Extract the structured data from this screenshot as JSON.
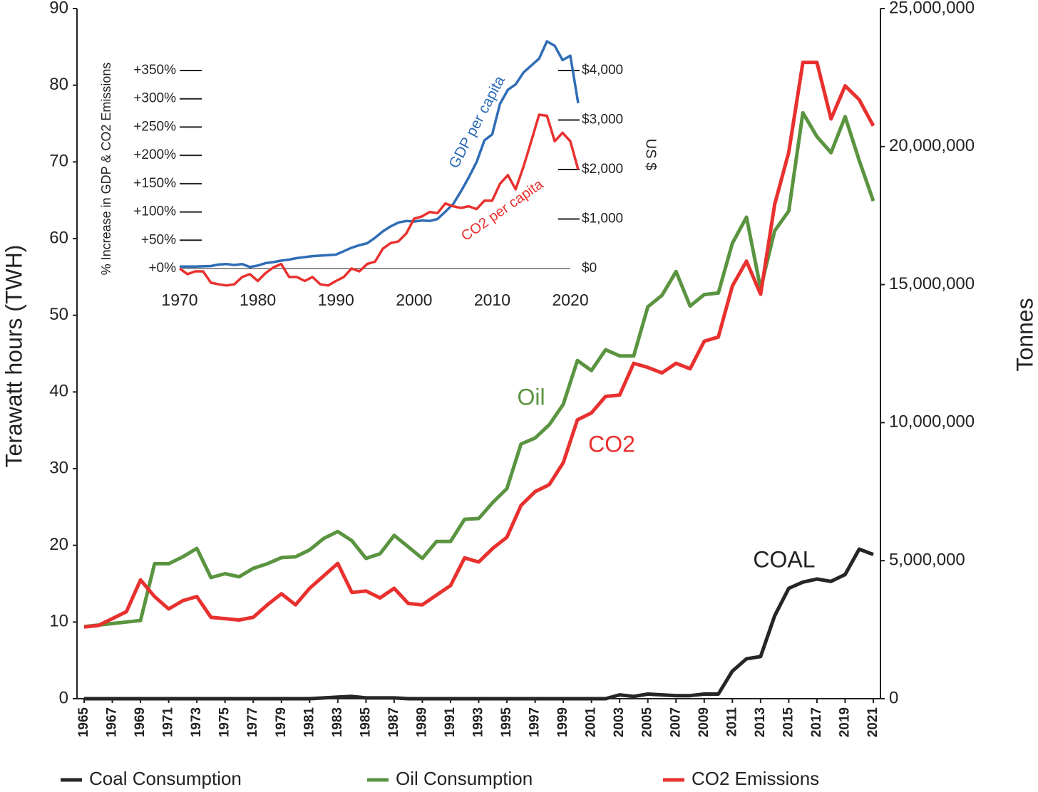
{
  "chart_data": [
    {
      "type": "line",
      "ylabel": "Terawatt hours (TWH)",
      "y2label": "Tonnes",
      "x": [
        1965,
        1966,
        1967,
        1968,
        1969,
        1970,
        1971,
        1972,
        1973,
        1974,
        1975,
        1976,
        1977,
        1978,
        1979,
        1980,
        1981,
        1982,
        1983,
        1984,
        1985,
        1986,
        1987,
        1988,
        1989,
        1990,
        1991,
        1992,
        1993,
        1994,
        1995,
        1996,
        1997,
        1998,
        1999,
        2000,
        2001,
        2002,
        2003,
        2004,
        2005,
        2006,
        2007,
        2008,
        2009,
        2010,
        2011,
        2012,
        2013,
        2014,
        2015,
        2016,
        2017,
        2018,
        2019,
        2020,
        2021
      ],
      "xlim": [
        1965,
        2021
      ],
      "xticks": [
        1965,
        1967,
        1969,
        1971,
        1973,
        1975,
        1977,
        1979,
        1981,
        1983,
        1985,
        1987,
        1989,
        1991,
        1993,
        1995,
        1997,
        1999,
        2001,
        2003,
        2005,
        2007,
        2009,
        2011,
        2013,
        2015,
        2017,
        2019,
        2021
      ],
      "ylim": [
        0,
        90
      ],
      "yticks": [
        0,
        10,
        20,
        30,
        40,
        50,
        60,
        70,
        80,
        90
      ],
      "y2lim": [
        0,
        25000000
      ],
      "y2ticks": [
        0,
        {
          "value": 5000000,
          "label": "5,000,000"
        },
        {
          "value": 10000000,
          "label": "10,000,000"
        },
        {
          "value": 15000000,
          "label": "15,000,000"
        },
        {
          "value": 20000000,
          "label": "20,000,000"
        },
        {
          "value": 25000000,
          "label": "25,000,000"
        }
      ],
      "series": [
        {
          "name": "Coal Consumption",
          "color": "#262626",
          "values": [
            0,
            0,
            0,
            0,
            0,
            0,
            0,
            0,
            0,
            0,
            0,
            0,
            0,
            0,
            0,
            0,
            0,
            0.1,
            0.2,
            0.3,
            0.1,
            0.1,
            0.1,
            0,
            0,
            0,
            0,
            0,
            0,
            0,
            0,
            0,
            0,
            0,
            0,
            0,
            0,
            0,
            0.5,
            0.3,
            0.6,
            0.5,
            0.4,
            0.4,
            0.6,
            0.6,
            3.6,
            5.2,
            5.5,
            10.8,
            14.4,
            15.2,
            15.6,
            15.3,
            16.2,
            19.5,
            18.8
          ]
        },
        {
          "name": "Oil Consumption",
          "color": "#5a9440",
          "values": [
            9.4,
            9.6,
            9.8,
            10.0,
            10.2,
            17.6,
            17.6,
            18.5,
            19.6,
            15.8,
            16.3,
            15.9,
            17.0,
            17.6,
            18.4,
            18.5,
            19.4,
            20.9,
            21.8,
            20.6,
            18.3,
            18.9,
            21.3,
            19.8,
            18.3,
            20.5,
            20.5,
            23.4,
            23.5,
            25.6,
            27.4,
            33.2,
            34.0,
            35.7,
            38.4,
            44.1,
            42.8,
            45.5,
            44.7,
            44.7,
            51.1,
            52.6,
            55.7,
            51.2,
            52.7,
            52.9,
            59.4,
            62.8,
            53.5,
            61.0,
            63.6,
            76.4,
            73.3,
            71.2,
            75.9,
            70.2,
            64.9
          ]
        },
        {
          "name": "CO2 Emissions",
          "color": "#e8312f",
          "axis": "y2",
          "values": [
            2600000,
            2650000,
            2900000,
            3150000,
            4300000,
            3700000,
            3250000,
            3550000,
            3700000,
            2950000,
            2900000,
            2850000,
            2950000,
            3400000,
            3800000,
            3400000,
            4000000,
            4450000,
            4900000,
            3850000,
            3900000,
            3650000,
            4000000,
            3450000,
            3400000,
            3750000,
            4100000,
            5100000,
            4950000,
            5450000,
            5850000,
            7000000,
            7500000,
            7750000,
            8550000,
            10100000,
            10350000,
            10950000,
            11000000,
            12150000,
            12000000,
            11800000,
            12150000,
            11950000,
            12950000,
            13100000,
            14950000,
            15850000,
            14650000,
            17900000,
            19800000,
            23050000,
            23050000,
            21000000,
            22200000,
            21700000,
            20750000
          ]
        }
      ],
      "annotations": [
        "Oil",
        "CO2",
        "COAL"
      ],
      "legend": "bottom"
    },
    {
      "type": "line",
      "ylabel": "% Increase in GDP & CO2 Emissions",
      "y2label": "US $",
      "x": [
        1970,
        1971,
        1972,
        1973,
        1974,
        1975,
        1976,
        1977,
        1978,
        1979,
        1980,
        1981,
        1982,
        1983,
        1984,
        1985,
        1986,
        1987,
        1988,
        1989,
        1990,
        1991,
        1992,
        1993,
        1994,
        1995,
        1996,
        1997,
        1998,
        1999,
        2000,
        2001,
        2002,
        2003,
        2004,
        2005,
        2006,
        2007,
        2008,
        2009,
        2010,
        2011,
        2012,
        2013,
        2014,
        2015,
        2016,
        2017,
        2018,
        2019,
        2020,
        2021
      ],
      "xlim": [
        1970,
        2021
      ],
      "xticks": [
        1970,
        1980,
        1990,
        2000,
        2010,
        2020
      ],
      "ylim": [
        0,
        350
      ],
      "yticks": [
        {
          "value": 0,
          "label": "+0%"
        },
        {
          "value": 50,
          "label": "+50%"
        },
        {
          "value": 100,
          "label": "+100%"
        },
        {
          "value": 150,
          "label": "+150%"
        },
        {
          "value": 200,
          "label": "+200%"
        },
        {
          "value": 250,
          "label": "+250%"
        },
        {
          "value": 300,
          "label": "+300%"
        },
        {
          "value": 350,
          "label": "+350%"
        }
      ],
      "y2lim": [
        0,
        4000
      ],
      "y2ticks": [
        {
          "value": 0,
          "label": "$0"
        },
        {
          "value": 1000,
          "label": "$1,000"
        },
        {
          "value": 2000,
          "label": "$2,000"
        },
        {
          "value": 3000,
          "label": "$3,000"
        },
        {
          "value": 4000,
          "label": "$4,000"
        }
      ],
      "series": [
        {
          "name": "GDP per capita",
          "color": "#2f6db5",
          "axis": "y2",
          "values": [
            40,
            40,
            40,
            45,
            50,
            80,
            90,
            70,
            90,
            30,
            60,
            110,
            130,
            160,
            180,
            210,
            230,
            250,
            260,
            270,
            280,
            350,
            420,
            470,
            510,
            620,
            750,
            850,
            930,
            960,
            950,
            970,
            960,
            1000,
            1150,
            1300,
            1560,
            1840,
            2150,
            2590,
            2710,
            3330,
            3610,
            3720,
            3960,
            4100,
            4240,
            4590,
            4500,
            4210,
            4300,
            3340
          ]
        },
        {
          "name": "CO2 per capita",
          "color": "#e8312f",
          "values": [
            0,
            -10,
            -5,
            -5,
            -25,
            -28,
            -30,
            -28,
            -15,
            -10,
            -22,
            -8,
            2,
            8,
            -15,
            -15,
            -22,
            -15,
            -28,
            -30,
            -22,
            -15,
            0,
            -5,
            8,
            12,
            35,
            45,
            48,
            62,
            88,
            92,
            100,
            98,
            115,
            110,
            107,
            110,
            105,
            120,
            120,
            150,
            165,
            140,
            180,
            225,
            272,
            270,
            225,
            240,
            225,
            175
          ]
        }
      ]
    }
  ]
}
